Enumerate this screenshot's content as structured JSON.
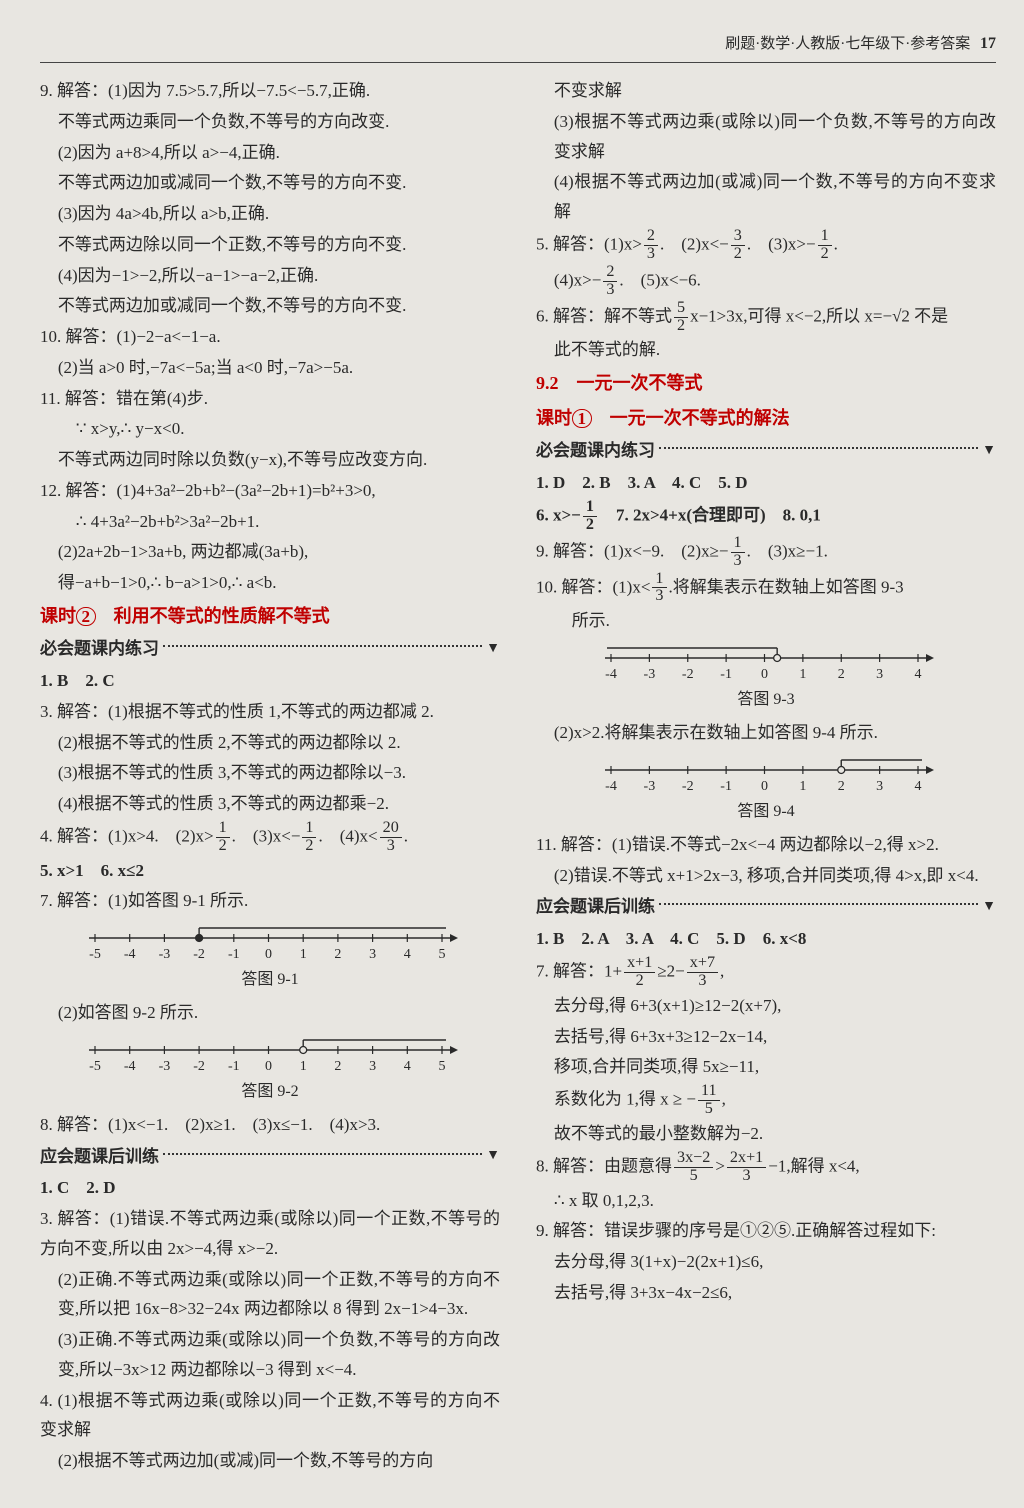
{
  "header": {
    "text": "刷题·数学·人教版·七年级下·参考答案",
    "page": "17"
  },
  "left": {
    "q9": {
      "head": "9. 解答：(1)因为 7.5>5.7,所以−7.5<−5.7,正确.",
      "l2": "不等式两边乘同一个负数,不等号的方向改变.",
      "l3": "(2)因为 a+8>4,所以 a>−4,正确.",
      "l4": "不等式两边加或减同一个数,不等号的方向不变.",
      "l5": "(3)因为 4a>4b,所以 a>b,正确.",
      "l6": "不等式两边除以同一个正数,不等号的方向不变.",
      "l7": "(4)因为−1>−2,所以−a−1>−a−2,正确.",
      "l8": "不等式两边加或减同一个数,不等号的方向不变."
    },
    "q10": {
      "head": "10. 解答：(1)−2−a<−1−a.",
      "l2": "(2)当 a>0 时,−7a<−5a;当 a<0 时,−7a>−5a."
    },
    "q11": {
      "head": "11. 解答：错在第(4)步.",
      "l2": "∵ x>y,∴ y−x<0.",
      "l3": "不等式两边同时除以负数(y−x),不等号应改变方向."
    },
    "q12": {
      "head": "12. 解答：(1)4+3a²−2b+b²−(3a²−2b+1)=b²+3>0,",
      "l2": "∴ 4+3a²−2b+b²>3a²−2b+1.",
      "l3": "(2)2a+2b−1>3a+b, 两边都减(3a+b),",
      "l4": "得−a+b−1>0,∴ b−a>1>0,∴ a<b."
    },
    "sec2": {
      "pre": "课时",
      "num": "2",
      "title": "利用不等式的性质解不等式"
    },
    "prac1": "必会题课内练习",
    "a12": "1. B　2. C",
    "q3a": {
      "head": "3. 解答：(1)根据不等式的性质 1,不等式的两边都减 2.",
      "l2": "(2)根据不等式的性质 2,不等式的两边都除以 2.",
      "l3": "(3)根据不等式的性质 3,不等式的两边都除以−3.",
      "l4": "(4)根据不等式的性质 3,不等式的两边都乘−2."
    },
    "q4": {
      "head": "4. 解答：(1)x>4.　(2)x>",
      "f2n": "1",
      "f2d": "2",
      "m": ".　(3)x<−",
      "f3n": "1",
      "f3d": "2",
      "m2": ".　(4)x<",
      "f4n": "20",
      "f4d": "3",
      "end": "."
    },
    "a56": "5. x>1　6. x≤2",
    "q7": {
      "head": "7. 解答：(1)如答图 9-1 所示.",
      "cap1": "答图 9-1",
      "l2": "(2)如答图 9-2 所示.",
      "cap2": "答图 9-2"
    },
    "nl_ticks": [
      "-5",
      "-4",
      "-3",
      "-2",
      "-1",
      "0",
      "1",
      "2",
      "3",
      "4",
      "5"
    ],
    "nl1": {
      "mark_at": -2,
      "open": false,
      "direction": "right",
      "bg": "#e8e6e1",
      "stroke": "#2a2a2a"
    },
    "nl2": {
      "mark_at": 1,
      "open": true,
      "direction": "right",
      "bg": "#e8e6e1",
      "stroke": "#2a2a2a"
    },
    "q8": "8. 解答：(1)x<−1.　(2)x≥1.　(3)x≤−1.　(4)x>3.",
    "prac2": "应会题课后训练",
    "b12": "1. C　2. D",
    "q3b": {
      "head": "3. 解答：(1)错误.不等式两边乘(或除以)同一个正数,不等号的方向不变,所以由 2x>−4,得 x>−2.",
      "l2": "(2)正确.不等式两边乘(或除以)同一个正数,不等号的方向不变,所以把 16x−8>32−24x 两边都除以 8 得到 2x−1>4−3x.",
      "l3": "(3)正确.不等式两边乘(或除以)同一个负数,不等号的方向改变,所以−3x>12 两边都除以−3 得到 x<−4."
    },
    "q4b": {
      "head": "4. (1)根据不等式两边乘(或除以)同一个正数,不等号的方向不变求解",
      "l2": "(2)根据不等式两边加(或减)同一个数,不等号的方向"
    }
  },
  "right": {
    "cont": {
      "l1": "不变求解",
      "l2": "(3)根据不等式两边乘(或除以)同一个负数,不等号的方向改变求解",
      "l3": "(4)根据不等式两边加(或减)同一个数,不等号的方向不变求解"
    },
    "q5": {
      "head": "5. 解答：(1)x>",
      "a": "2",
      "b": "3",
      "m1": ".　(2)x<−",
      "c": "3",
      "d": "2",
      "m2": ".　(3)x>−",
      "e": "1",
      "f": "2",
      "m3": ".",
      "l2a": "(4)x>−",
      "g": "2",
      "h": "3",
      "l2b": ".　(5)x<−6."
    },
    "q6": {
      "head": "6. 解答：解不等式",
      "fa": "5",
      "fb": "2",
      "mid": "x−1>3x,可得 x<−2,所以 x=−√2 不是",
      "l2": "此不等式的解."
    },
    "sec92": "9.2　一元一次不等式",
    "sec1": {
      "pre": "课时",
      "num": "1",
      "title": "一元一次不等式的解法"
    },
    "prac1": "必会题课内练习",
    "a15": "1. D　2. B　3. A　4. C　5. D",
    "q6r": {
      "a": "6. x>−",
      "n": "1",
      "d": "2",
      "b": "　7. 2x>4+x(合理即可)　8. 0,1"
    },
    "q9r": {
      "head": "9. 解答：(1)x<−9.　(2)x≥−",
      "n": "1",
      "d": "3",
      "tail": ".　(3)x≥−1."
    },
    "q10": {
      "head": "10. 解答：(1)x<",
      "n": "1",
      "d": "3",
      "mid": ".将解集表示在数轴上如答图 9-3",
      "l2": "所示.",
      "cap1": "答图 9-3",
      "l3": "(2)x>2.将解集表示在数轴上如答图 9-4 所示.",
      "cap2": "答图 9-4"
    },
    "nl_ticks2": [
      "-4",
      "-3",
      "-2",
      "-1",
      "0",
      "1",
      "2",
      "3",
      "4"
    ],
    "nl3": {
      "mark_at": 0.33,
      "open": true,
      "direction": "left",
      "stroke": "#2a2a2a"
    },
    "nl4": {
      "mark_at": 2,
      "open": true,
      "direction": "right",
      "stroke": "#2a2a2a"
    },
    "q11": {
      "head": "11. 解答：(1)错误.不等式−2x<−4 两边都除以−2,得 x>2.",
      "l2": "(2)错误.不等式 x+1>2x−3, 移项,合并同类项,得 4>x,即 x<4."
    },
    "prac2": "应会题课后训练",
    "b16": "1. B　2. A　3. A　4. C　5. D　6. x<8",
    "q7r": {
      "head": "7. 解答：1+",
      "an": "x+1",
      "ad": "2",
      "m1": "≥2−",
      "bn": "x+7",
      "bd": "3",
      "m2": ",",
      "l2": "去分母,得 6+3(x+1)≥12−2(x+7),",
      "l3": "去括号,得 6+3x+3≥12−2x−14,",
      "l4": "移项,合并同类项,得 5x≥−11,",
      "l5a": "系数化为 1,得 x ≥ −",
      "cn": "11",
      "cd": "5",
      "l5b": ",",
      "l6": "故不等式的最小整数解为−2."
    },
    "q8r": {
      "head": "8. 解答：由题意得",
      "an": "3x−2",
      "ad": "5",
      "m": ">",
      "bn": "2x+1",
      "bd": "3",
      "tail": "−1,解得 x<4,",
      "l2": "∴ x 取 0,1,2,3."
    },
    "q9b": {
      "head": "9. 解答：错误步骤的序号是①②⑤.正确解答过程如下:",
      "l2": "去分母,得 3(1+x)−2(2x+1)≤6,",
      "l3": "去括号,得 3+3x−4x−2≤6,"
    }
  }
}
